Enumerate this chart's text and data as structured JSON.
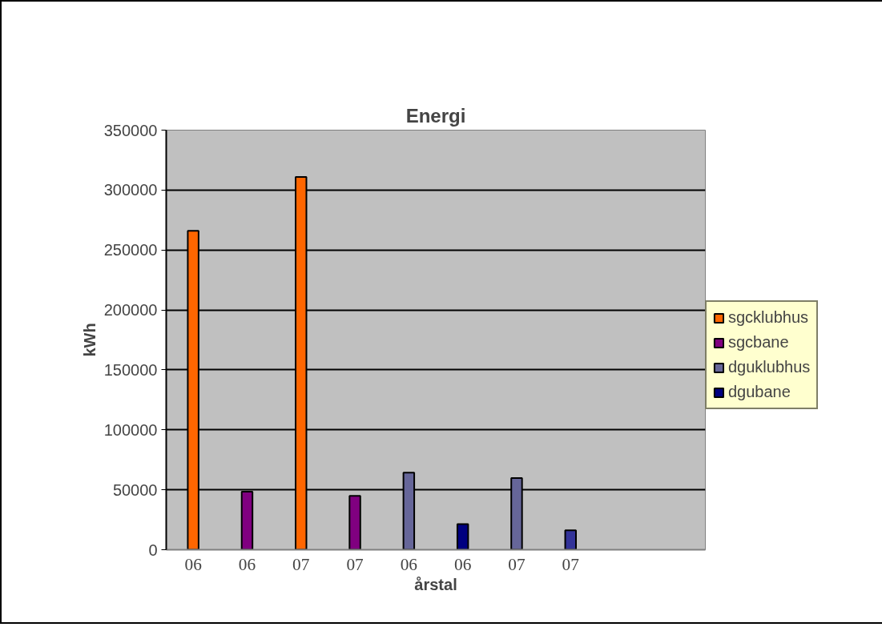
{
  "chart_data": {
    "type": "bar",
    "title": "Energi",
    "xlabel": "årstal",
    "ylabel": "kWh",
    "categories": [
      "06",
      "06",
      "07",
      "07",
      "06",
      "06",
      "07",
      "07",
      null,
      null
    ],
    "series": [
      {
        "name": "sgcklubhus",
        "color": "#ff6600",
        "values": [
          266000,
          null,
          311000,
          null,
          null,
          null,
          null,
          null,
          null,
          null
        ]
      },
      {
        "name": "sgcbane",
        "color": "#800080",
        "values": [
          null,
          48400,
          null,
          45000,
          null,
          null,
          null,
          null,
          null,
          null
        ]
      },
      {
        "name": "dguklubhus",
        "color": "#666699",
        "values": [
          null,
          null,
          null,
          null,
          64300,
          null,
          59700,
          null,
          null,
          null
        ]
      },
      {
        "name": "dgubane",
        "color": "#000080",
        "colors": [
          null,
          null,
          null,
          null,
          null,
          null,
          null,
          "#333399",
          null,
          null
        ],
        "values": [
          null,
          null,
          null,
          null,
          null,
          21300,
          null,
          16200,
          null,
          null
        ]
      }
    ],
    "ylim": [
      0,
      350000
    ],
    "yticks": [
      0,
      50000,
      100000,
      150000,
      200000,
      250000,
      300000,
      350000
    ],
    "grid": "y",
    "legend": "right"
  }
}
